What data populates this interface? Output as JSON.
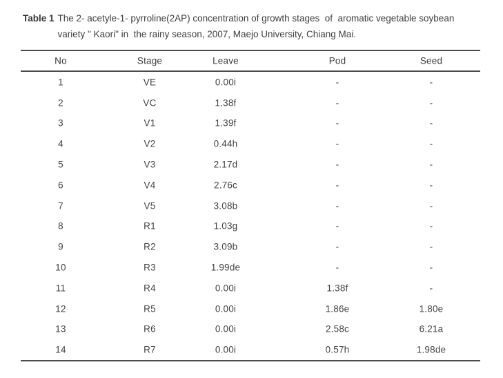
{
  "caption": {
    "label": "Table 1",
    "line1": "The 2- acetyle-1- pyrroline(2AP) concentration of growth stages  of  aromatic vegetable soybean",
    "line2": "variety \" Kaori\" in  the rainy season, 2007, Maejo University, Chiang Mai."
  },
  "chart_data": {
    "type": "table",
    "title": "The 2- acetyle-1- pyrroline(2AP) concentration of growth stages of aromatic vegetable soybean variety \"Kaori\" in the rainy season, 2007, Maejo University, Chiang Mai.",
    "columns": [
      "No",
      "Stage",
      "Leave",
      "Pod",
      "Seed"
    ],
    "rows": [
      [
        "1",
        "VE",
        "0.00i",
        "-",
        "-"
      ],
      [
        "2",
        "VC",
        "1.38f",
        "-",
        "-"
      ],
      [
        "3",
        "V1",
        "1.39f",
        "-",
        "-"
      ],
      [
        "4",
        "V2",
        "0.44h",
        "-",
        "-"
      ],
      [
        "5",
        "V3",
        "2.17d",
        "-",
        "-"
      ],
      [
        "6",
        "V4",
        "2.76c",
        "-",
        "-"
      ],
      [
        "7",
        "V5",
        "3.08b",
        "-",
        "-"
      ],
      [
        "8",
        "R1",
        "1.03g",
        "-",
        "-"
      ],
      [
        "9",
        "R2",
        "3.09b",
        "-",
        "-"
      ],
      [
        "10",
        "R3",
        "1.99de",
        "-",
        "-"
      ],
      [
        "11",
        "R4",
        "0.00i",
        "1.38f",
        "-"
      ],
      [
        "12",
        "R5",
        "0.00i",
        "1.86e",
        "1.80e"
      ],
      [
        "13",
        "R6",
        "0.00i",
        "2.58c",
        "6.21a"
      ],
      [
        "14",
        "R7",
        "0.00i",
        "0.57h",
        "1.98de"
      ]
    ]
  },
  "colors": {
    "text": "#424242",
    "rule": "#4a4a4a",
    "background": "#ffffff"
  }
}
